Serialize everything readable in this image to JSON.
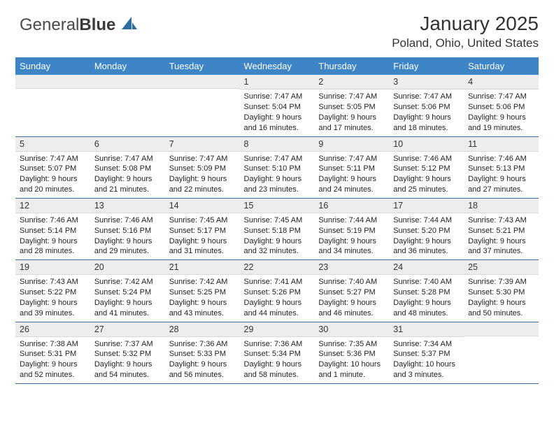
{
  "logo": {
    "text1": "General",
    "text2": "Blue"
  },
  "header": {
    "title": "January 2025",
    "location": "Poland, Ohio, United States"
  },
  "colors": {
    "header_bg": "#3d85c6",
    "row_border": "#3d6a9a",
    "daynum_bg": "#ededed"
  },
  "weekdays": [
    "Sunday",
    "Monday",
    "Tuesday",
    "Wednesday",
    "Thursday",
    "Friday",
    "Saturday"
  ],
  "weeks": [
    [
      {
        "n": "",
        "lines": []
      },
      {
        "n": "",
        "lines": []
      },
      {
        "n": "",
        "lines": []
      },
      {
        "n": "1",
        "lines": [
          "Sunrise: 7:47 AM",
          "Sunset: 5:04 PM",
          "Daylight: 9 hours",
          "and 16 minutes."
        ]
      },
      {
        "n": "2",
        "lines": [
          "Sunrise: 7:47 AM",
          "Sunset: 5:05 PM",
          "Daylight: 9 hours",
          "and 17 minutes."
        ]
      },
      {
        "n": "3",
        "lines": [
          "Sunrise: 7:47 AM",
          "Sunset: 5:06 PM",
          "Daylight: 9 hours",
          "and 18 minutes."
        ]
      },
      {
        "n": "4",
        "lines": [
          "Sunrise: 7:47 AM",
          "Sunset: 5:06 PM",
          "Daylight: 9 hours",
          "and 19 minutes."
        ]
      }
    ],
    [
      {
        "n": "5",
        "lines": [
          "Sunrise: 7:47 AM",
          "Sunset: 5:07 PM",
          "Daylight: 9 hours",
          "and 20 minutes."
        ]
      },
      {
        "n": "6",
        "lines": [
          "Sunrise: 7:47 AM",
          "Sunset: 5:08 PM",
          "Daylight: 9 hours",
          "and 21 minutes."
        ]
      },
      {
        "n": "7",
        "lines": [
          "Sunrise: 7:47 AM",
          "Sunset: 5:09 PM",
          "Daylight: 9 hours",
          "and 22 minutes."
        ]
      },
      {
        "n": "8",
        "lines": [
          "Sunrise: 7:47 AM",
          "Sunset: 5:10 PM",
          "Daylight: 9 hours",
          "and 23 minutes."
        ]
      },
      {
        "n": "9",
        "lines": [
          "Sunrise: 7:47 AM",
          "Sunset: 5:11 PM",
          "Daylight: 9 hours",
          "and 24 minutes."
        ]
      },
      {
        "n": "10",
        "lines": [
          "Sunrise: 7:46 AM",
          "Sunset: 5:12 PM",
          "Daylight: 9 hours",
          "and 25 minutes."
        ]
      },
      {
        "n": "11",
        "lines": [
          "Sunrise: 7:46 AM",
          "Sunset: 5:13 PM",
          "Daylight: 9 hours",
          "and 27 minutes."
        ]
      }
    ],
    [
      {
        "n": "12",
        "lines": [
          "Sunrise: 7:46 AM",
          "Sunset: 5:14 PM",
          "Daylight: 9 hours",
          "and 28 minutes."
        ]
      },
      {
        "n": "13",
        "lines": [
          "Sunrise: 7:46 AM",
          "Sunset: 5:16 PM",
          "Daylight: 9 hours",
          "and 29 minutes."
        ]
      },
      {
        "n": "14",
        "lines": [
          "Sunrise: 7:45 AM",
          "Sunset: 5:17 PM",
          "Daylight: 9 hours",
          "and 31 minutes."
        ]
      },
      {
        "n": "15",
        "lines": [
          "Sunrise: 7:45 AM",
          "Sunset: 5:18 PM",
          "Daylight: 9 hours",
          "and 32 minutes."
        ]
      },
      {
        "n": "16",
        "lines": [
          "Sunrise: 7:44 AM",
          "Sunset: 5:19 PM",
          "Daylight: 9 hours",
          "and 34 minutes."
        ]
      },
      {
        "n": "17",
        "lines": [
          "Sunrise: 7:44 AM",
          "Sunset: 5:20 PM",
          "Daylight: 9 hours",
          "and 36 minutes."
        ]
      },
      {
        "n": "18",
        "lines": [
          "Sunrise: 7:43 AM",
          "Sunset: 5:21 PM",
          "Daylight: 9 hours",
          "and 37 minutes."
        ]
      }
    ],
    [
      {
        "n": "19",
        "lines": [
          "Sunrise: 7:43 AM",
          "Sunset: 5:22 PM",
          "Daylight: 9 hours",
          "and 39 minutes."
        ]
      },
      {
        "n": "20",
        "lines": [
          "Sunrise: 7:42 AM",
          "Sunset: 5:24 PM",
          "Daylight: 9 hours",
          "and 41 minutes."
        ]
      },
      {
        "n": "21",
        "lines": [
          "Sunrise: 7:42 AM",
          "Sunset: 5:25 PM",
          "Daylight: 9 hours",
          "and 43 minutes."
        ]
      },
      {
        "n": "22",
        "lines": [
          "Sunrise: 7:41 AM",
          "Sunset: 5:26 PM",
          "Daylight: 9 hours",
          "and 44 minutes."
        ]
      },
      {
        "n": "23",
        "lines": [
          "Sunrise: 7:40 AM",
          "Sunset: 5:27 PM",
          "Daylight: 9 hours",
          "and 46 minutes."
        ]
      },
      {
        "n": "24",
        "lines": [
          "Sunrise: 7:40 AM",
          "Sunset: 5:28 PM",
          "Daylight: 9 hours",
          "and 48 minutes."
        ]
      },
      {
        "n": "25",
        "lines": [
          "Sunrise: 7:39 AM",
          "Sunset: 5:30 PM",
          "Daylight: 9 hours",
          "and 50 minutes."
        ]
      }
    ],
    [
      {
        "n": "26",
        "lines": [
          "Sunrise: 7:38 AM",
          "Sunset: 5:31 PM",
          "Daylight: 9 hours",
          "and 52 minutes."
        ]
      },
      {
        "n": "27",
        "lines": [
          "Sunrise: 7:37 AM",
          "Sunset: 5:32 PM",
          "Daylight: 9 hours",
          "and 54 minutes."
        ]
      },
      {
        "n": "28",
        "lines": [
          "Sunrise: 7:36 AM",
          "Sunset: 5:33 PM",
          "Daylight: 9 hours",
          "and 56 minutes."
        ]
      },
      {
        "n": "29",
        "lines": [
          "Sunrise: 7:36 AM",
          "Sunset: 5:34 PM",
          "Daylight: 9 hours",
          "and 58 minutes."
        ]
      },
      {
        "n": "30",
        "lines": [
          "Sunrise: 7:35 AM",
          "Sunset: 5:36 PM",
          "Daylight: 10 hours",
          "and 1 minute."
        ]
      },
      {
        "n": "31",
        "lines": [
          "Sunrise: 7:34 AM",
          "Sunset: 5:37 PM",
          "Daylight: 10 hours",
          "and 3 minutes."
        ]
      },
      {
        "n": "",
        "lines": []
      }
    ]
  ]
}
